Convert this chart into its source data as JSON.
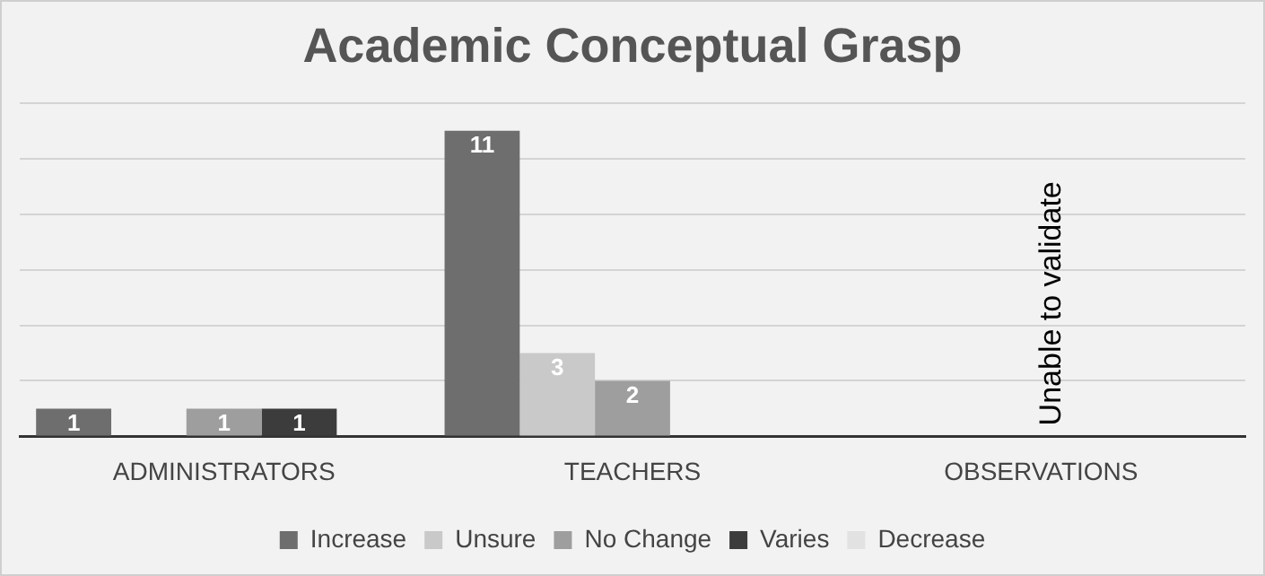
{
  "chart_data": {
    "type": "bar",
    "title": "Academic Conceptual Grasp",
    "categories": [
      "ADMINISTRATORS",
      "TEACHERS",
      "OBSERVATIONS"
    ],
    "series": [
      {
        "name": "Increase",
        "color": "#6e6e6e",
        "values": [
          1,
          11,
          null
        ]
      },
      {
        "name": "Unsure",
        "color": "#c9c9c9",
        "values": [
          null,
          3,
          null
        ]
      },
      {
        "name": "No Change",
        "color": "#9e9e9e",
        "values": [
          1,
          2,
          null
        ]
      },
      {
        "name": "Varies",
        "color": "#3c3c3c",
        "values": [
          1,
          null,
          null
        ]
      },
      {
        "name": "Decrease",
        "color": "#e2e2e2",
        "values": [
          null,
          null,
          null
        ]
      }
    ],
    "ylim": [
      0,
      12
    ],
    "yticks": [
      0,
      2,
      4,
      6,
      8,
      10,
      12
    ],
    "grid": "y",
    "tick_labels": "x",
    "legend": "bottom",
    "data_labels": true,
    "annotations": [
      "Unable to validate"
    ]
  }
}
